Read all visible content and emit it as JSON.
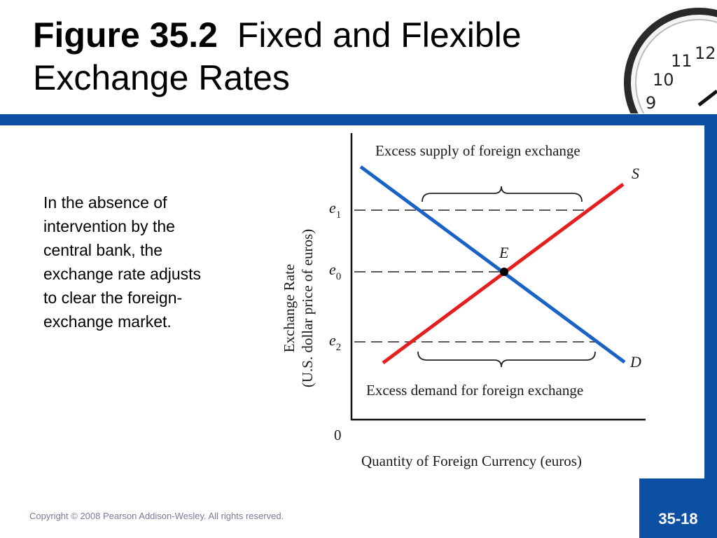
{
  "colors": {
    "band": "#0d4fa3",
    "supply_line": "#e3201f",
    "demand_line": "#1a63c4"
  },
  "title": {
    "figure_label": "Figure 35.2",
    "line1": "Fixed and Flexible",
    "line2": "Exchange Rates"
  },
  "description": "In the absence of intervention by the central bank, the exchange rate adjusts to clear the foreign-exchange market.",
  "diagram": {
    "y_axis_label_1": "Exchange Rate",
    "y_axis_label_2": "(U.S. dollar price of euros)",
    "x_axis_label": "Quantity of Foreign Currency (euros)",
    "origin": "0",
    "excess_supply": "Excess supply of foreign exchange",
    "excess_demand": "Excess demand for foreign exchange",
    "supply_label": "S",
    "demand_label": "D",
    "equilibrium_label": "E",
    "e1": {
      "base": "e",
      "sub": "1"
    },
    "e0": {
      "base": "e",
      "sub": "0"
    },
    "e2": {
      "base": "e",
      "sub": "2"
    }
  },
  "footer": {
    "copyright": "Copyright © 2008 Pearson Addison-Wesley. All rights reserved.",
    "slide_number": "35-18"
  },
  "icons": {
    "clock": "clock-icon"
  }
}
